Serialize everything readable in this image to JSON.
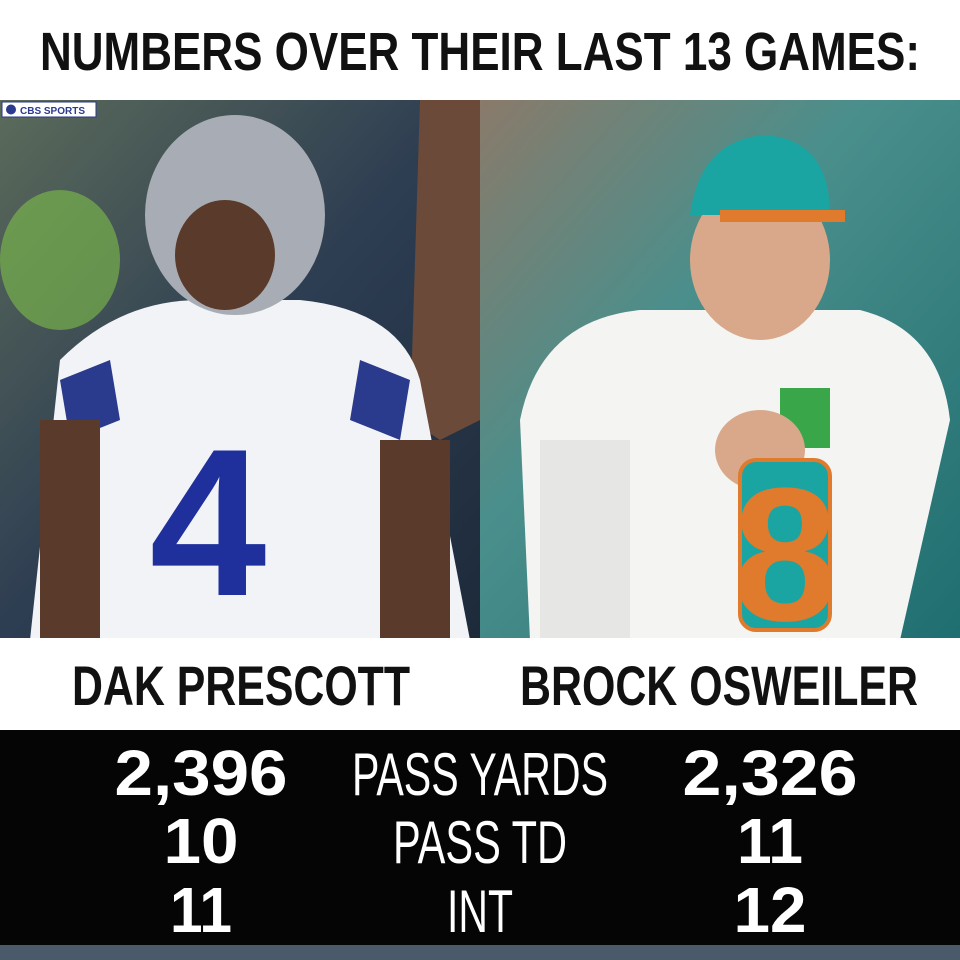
{
  "header": {
    "title": "NUMBERS OVER THEIR LAST 13 GAMES:",
    "logo": "CBS SPORTS"
  },
  "players": [
    {
      "name": "DAK PRESCOTT",
      "jersey": "4"
    },
    {
      "name": "BROCK OSWEILER",
      "jersey": "8"
    }
  ],
  "stats": {
    "rows": [
      [
        "2,396",
        "PASS YARDS",
        "2,326"
      ],
      [
        "10",
        "PASS TD",
        "11"
      ],
      [
        "11",
        "INT",
        "12"
      ]
    ]
  }
}
